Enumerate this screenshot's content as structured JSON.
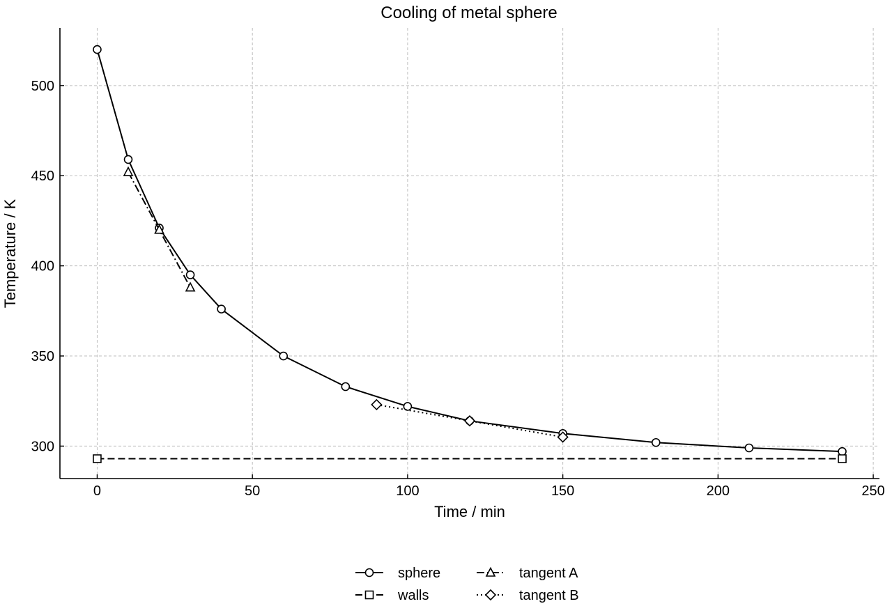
{
  "chart_data": {
    "type": "line",
    "title": "Cooling of metal sphere",
    "xlabel": "Time / min",
    "ylabel": "Temperature / K",
    "xlim": [
      -12,
      252
    ],
    "ylim": [
      282,
      532
    ],
    "xticks": [
      0,
      50,
      100,
      150,
      200,
      250
    ],
    "yticks": [
      300,
      350,
      400,
      450,
      500
    ],
    "grid": true,
    "legend_position": "bottom-center",
    "series": [
      {
        "name": "sphere",
        "x": [
          0,
          10,
          20,
          30,
          40,
          60,
          80,
          100,
          120,
          150,
          180,
          210,
          240
        ],
        "y": [
          520,
          459,
          421,
          395,
          376,
          350,
          333,
          322,
          314,
          307,
          302,
          299,
          297
        ],
        "marker": "circle",
        "linestyle": "solid",
        "color": "#000000"
      },
      {
        "name": "walls",
        "x": [
          0,
          240
        ],
        "y": [
          293,
          293
        ],
        "marker": "square",
        "linestyle": "dashed",
        "color": "#000000"
      },
      {
        "name": "tangent A",
        "x": [
          10,
          20,
          30
        ],
        "y": [
          452,
          420,
          388
        ],
        "marker": "triangle",
        "linestyle": "dashdot",
        "color": "#000000"
      },
      {
        "name": "tangent B",
        "x": [
          90,
          120,
          150
        ],
        "y": [
          323,
          314,
          305
        ],
        "marker": "diamond",
        "linestyle": "dotted",
        "color": "#000000"
      }
    ]
  }
}
